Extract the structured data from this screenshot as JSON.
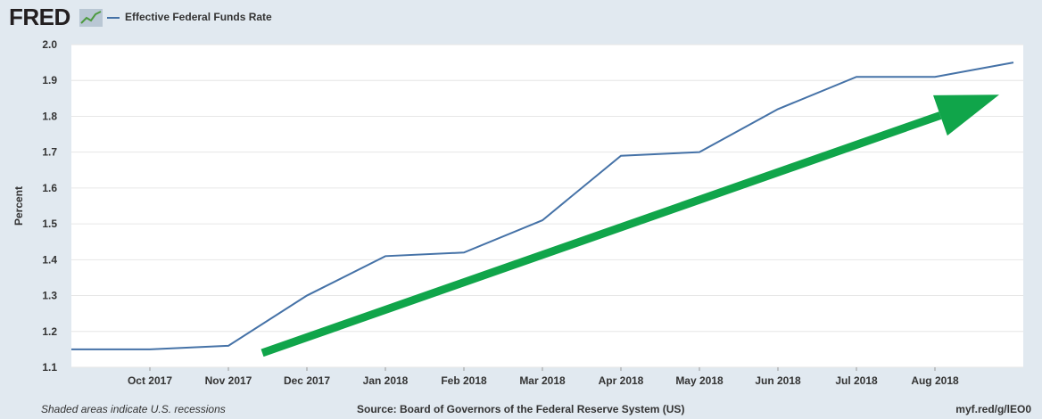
{
  "header": {
    "logo_text": "FRED",
    "legend_label": "Effective Federal Funds Rate"
  },
  "footer": {
    "note": "Shaded areas indicate U.S. recessions",
    "source": "Source: Board of Governors of the Federal Reserve System (US)",
    "short_url": "myf.red/g/lEO0"
  },
  "colors": {
    "background": "#e1e9f0",
    "plot_background": "#ffffff",
    "series_line": "#4572a7",
    "arrow": "#10a54a",
    "grid": "#e6e6e6"
  },
  "chart_data": {
    "type": "line",
    "title": "",
    "xlabel": "",
    "ylabel": "Percent",
    "ylim": [
      1.1,
      2.0
    ],
    "y_ticks": [
      "1.1",
      "1.2",
      "1.3",
      "1.4",
      "1.5",
      "1.6",
      "1.7",
      "1.8",
      "1.9",
      "2.0"
    ],
    "x_ticks": [
      "Oct 2017",
      "Nov 2017",
      "Dec 2017",
      "Jan 2018",
      "Feb 2018",
      "Mar 2018",
      "Apr 2018",
      "May 2018",
      "Jun 2018",
      "Jul 2018",
      "Aug 2018"
    ],
    "grid": true,
    "series": [
      {
        "name": "Effective Federal Funds Rate",
        "x": [
          "Sep 2017",
          "Oct 2017",
          "Nov 2017",
          "Dec 2017",
          "Jan 2018",
          "Feb 2018",
          "Mar 2018",
          "Apr 2018",
          "May 2018",
          "Jun 2018",
          "Jul 2018",
          "Aug 2018",
          "Sep 2018"
        ],
        "values": [
          1.15,
          1.15,
          1.16,
          1.3,
          1.41,
          1.42,
          1.51,
          1.69,
          1.7,
          1.82,
          1.91,
          1.91,
          1.95
        ]
      }
    ],
    "annotations": [
      {
        "type": "arrow",
        "description": "upward trend",
        "from": [
          "Nov 2017",
          1.14
        ],
        "to": [
          "Sep 2018",
          1.86
        ]
      }
    ]
  }
}
